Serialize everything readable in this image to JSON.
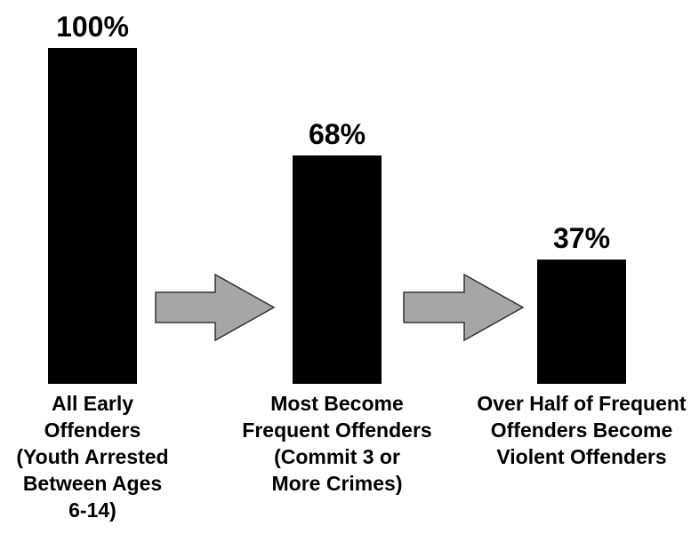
{
  "chart_data": {
    "type": "bar",
    "title": "",
    "xlabel": "",
    "ylabel": "",
    "ylim": [
      0,
      100
    ],
    "grid": false,
    "categories": [
      [
        "All Early",
        "Offenders",
        "(Youth Arrested",
        "Between Ages",
        "6-14)"
      ],
      [
        "Most Become",
        "Frequent Offenders",
        "(Commit 3 or",
        "More Crimes)"
      ],
      [
        "Over Half of Frequent",
        "Offenders Become",
        "Violent Offenders"
      ]
    ],
    "values": [
      100,
      68,
      37
    ],
    "data_labels": [
      "100%",
      "68%",
      "37%"
    ],
    "colors": {
      "bar": "#000000",
      "arrow_fill": "#a6a6a6",
      "arrow_stroke": "#333333"
    },
    "connectors": [
      {
        "from": 0,
        "to": 1,
        "shape": "right-arrow"
      },
      {
        "from": 1,
        "to": 2,
        "shape": "right-arrow"
      }
    ]
  }
}
